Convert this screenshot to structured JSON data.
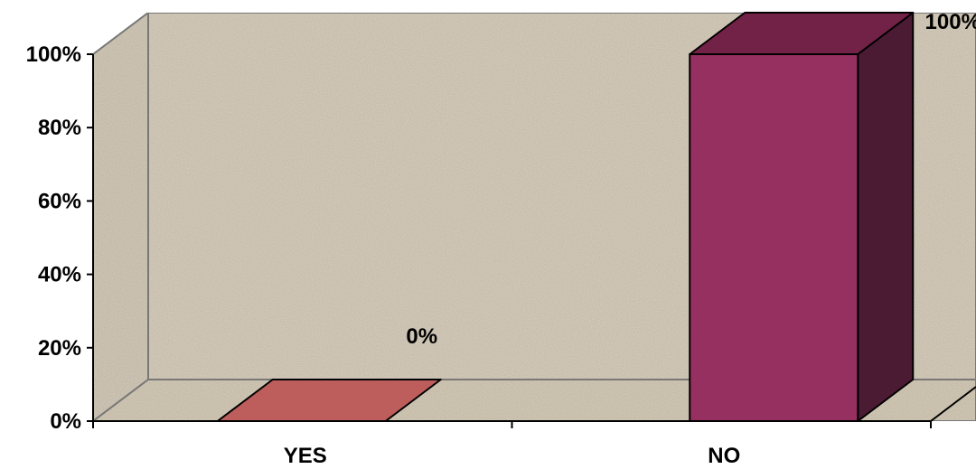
{
  "chart_data": {
    "type": "bar",
    "style": "3d",
    "categories": [
      "YES",
      "NO"
    ],
    "values": [
      0,
      100
    ],
    "data_labels": [
      "0%",
      "100%"
    ],
    "y_ticks": [
      "0%",
      "20%",
      "40%",
      "60%",
      "80%",
      "100%"
    ],
    "ylim": [
      0,
      100
    ],
    "grid": false,
    "legend": "none",
    "colors": {
      "bars": [
        "#bd5e5c",
        "#963060"
      ],
      "bar_top": "#722246",
      "bar_side": "#4b1a33",
      "wall": "#d8d0c1",
      "floor": "#d6cdbc",
      "axis": "#808080"
    }
  }
}
